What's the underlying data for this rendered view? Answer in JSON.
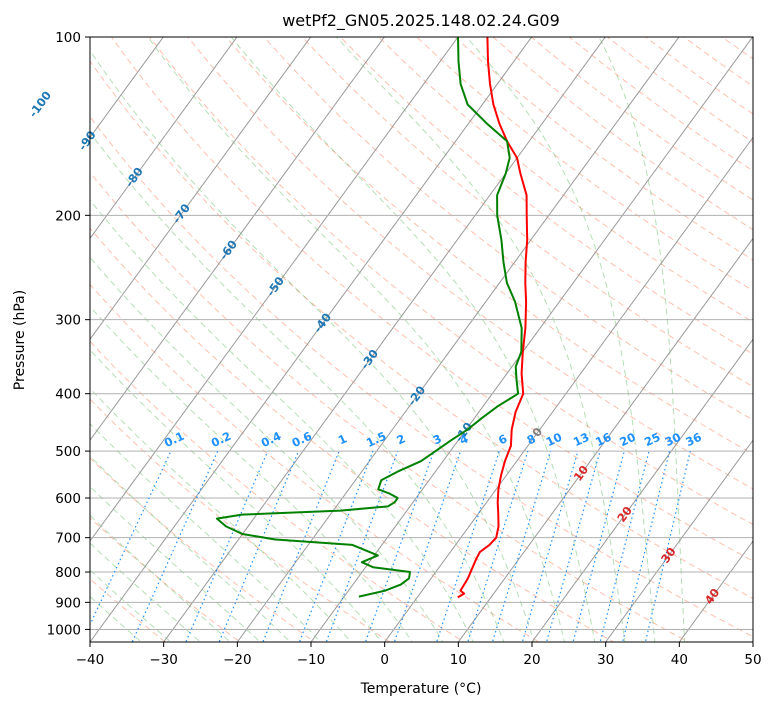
{
  "chart_data": {
    "type": "line",
    "diagram": "skew-T log-P",
    "title": "wetPf2_GN05.2025.148.02.24.G09",
    "xlabel": "Temperature (°C)",
    "ylabel": "Pressure (hPa)",
    "xlim": [
      -40,
      50
    ],
    "ylim": [
      1050,
      100
    ],
    "y_scale": "log",
    "grid": true,
    "x_ticks": [
      -40,
      -30,
      -20,
      -10,
      0,
      10,
      20,
      30,
      40,
      50
    ],
    "y_ticks": [
      1000,
      900,
      800,
      700,
      600,
      500,
      400,
      300,
      200,
      100
    ],
    "isotherm_labels": [
      -100,
      -90,
      -80,
      -70,
      -60,
      -50,
      -40,
      -30,
      -20,
      -10,
      0,
      10,
      20,
      30,
      40
    ],
    "isotherm_label_colors": {
      "below_zero": "#1f77b4",
      "zero": "#808080",
      "above_zero": "#d62728"
    },
    "mixing_ratio_labels": [
      "0.1",
      "0.2",
      "0.4",
      "0.6",
      "1",
      "1.5",
      "2",
      "3",
      "4",
      "6",
      "8",
      "10",
      "13",
      "16",
      "20",
      "25",
      "30",
      "36"
    ],
    "mixing_ratio_color": "#1e90ff",
    "series": [
      {
        "color": "#ff0000",
        "points": [
          [
            883,
            5.5
          ],
          [
            870,
            6.0
          ],
          [
            860,
            5.2
          ],
          [
            820,
            5.0
          ],
          [
            790,
            4.6
          ],
          [
            760,
            4.2
          ],
          [
            740,
            4.0
          ],
          [
            720,
            4.6
          ],
          [
            700,
            4.8
          ],
          [
            670,
            4.0
          ],
          [
            640,
            2.8
          ],
          [
            610,
            1.5
          ],
          [
            580,
            0.3
          ],
          [
            550,
            -0.7
          ],
          [
            520,
            -1.6
          ],
          [
            490,
            -2.3
          ],
          [
            460,
            -3.8
          ],
          [
            430,
            -5.0
          ],
          [
            400,
            -5.8
          ],
          [
            370,
            -8.0
          ],
          [
            340,
            -10.0
          ],
          [
            310,
            -12.0
          ],
          [
            280,
            -14.5
          ],
          [
            260,
            -16.5
          ],
          [
            240,
            -18.5
          ],
          [
            220,
            -20.5
          ],
          [
            200,
            -23.0
          ],
          [
            185,
            -25.0
          ],
          [
            170,
            -28.0
          ],
          [
            160,
            -30.0
          ],
          [
            150,
            -33.0
          ],
          [
            140,
            -35.8
          ],
          [
            130,
            -38.5
          ],
          [
            120,
            -41.0
          ],
          [
            110,
            -43.5
          ],
          [
            100,
            -46.0
          ]
        ]
      },
      {
        "color": "#008000",
        "points": [
          [
            880,
            -8.0
          ],
          [
            860,
            -5.0
          ],
          [
            840,
            -3.5
          ],
          [
            820,
            -3.0
          ],
          [
            800,
            -3.5
          ],
          [
            785,
            -9.0
          ],
          [
            770,
            -11.0
          ],
          [
            750,
            -9.5
          ],
          [
            720,
            -14.0
          ],
          [
            705,
            -25.0
          ],
          [
            690,
            -30.0
          ],
          [
            670,
            -33.0
          ],
          [
            650,
            -35.0
          ],
          [
            640,
            -32.0
          ],
          [
            630,
            -19.0
          ],
          [
            620,
            -13.0
          ],
          [
            610,
            -12.5
          ],
          [
            600,
            -12.5
          ],
          [
            590,
            -14.0
          ],
          [
            580,
            -16.0
          ],
          [
            560,
            -16.5
          ],
          [
            540,
            -15.0
          ],
          [
            520,
            -13.0
          ],
          [
            500,
            -12.0
          ],
          [
            480,
            -11.0
          ],
          [
            460,
            -9.8
          ],
          [
            440,
            -9.0
          ],
          [
            420,
            -8.0
          ],
          [
            400,
            -6.5
          ],
          [
            380,
            -8.0
          ],
          [
            360,
            -9.5
          ],
          [
            340,
            -10.2
          ],
          [
            310,
            -12.5
          ],
          [
            280,
            -16.0
          ],
          [
            260,
            -19.0
          ],
          [
            240,
            -21.5
          ],
          [
            220,
            -24.0
          ],
          [
            200,
            -27.0
          ],
          [
            185,
            -29.0
          ],
          [
            170,
            -30.0
          ],
          [
            160,
            -31.0
          ],
          [
            150,
            -33.0
          ],
          [
            140,
            -37.5
          ],
          [
            130,
            -42.0
          ],
          [
            120,
            -45.0
          ],
          [
            110,
            -47.5
          ],
          [
            100,
            -50.0
          ]
        ]
      }
    ]
  }
}
